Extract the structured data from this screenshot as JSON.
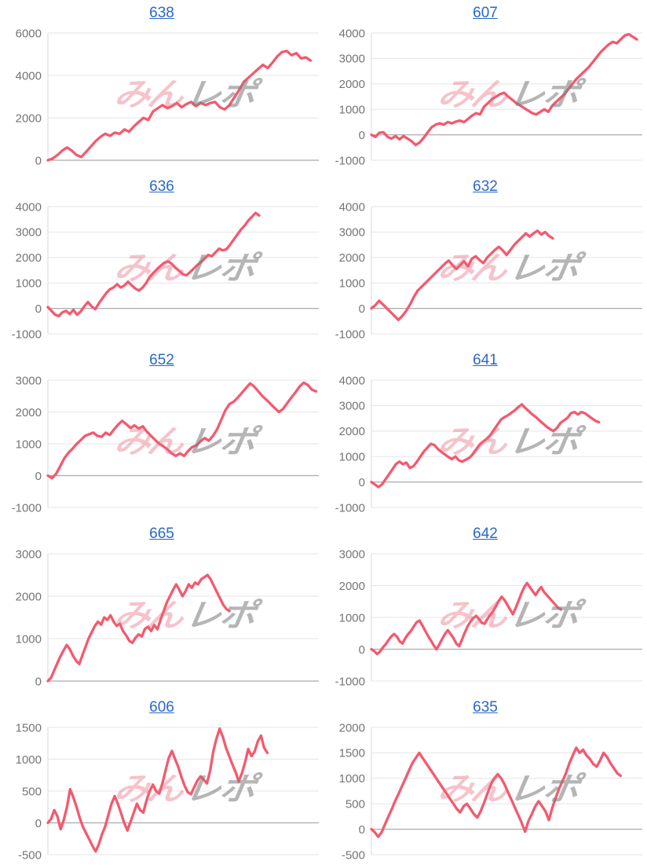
{
  "page": {
    "background": "#FFFFFF"
  },
  "watermark": {
    "pink_text": "みん",
    "gray_text": "レポ",
    "pink_color": "rgba(232,106,124,0.40)",
    "gray_color": "rgba(128,128,128,0.58)"
  },
  "style": {
    "line_color": "#F4596E",
    "title_color": "#2A68C8",
    "tick_label_color": "#757575",
    "grid_color": "#E6E6E6",
    "zero_line_color": "#ABABAB",
    "axis_color": "#D8D8D8"
  },
  "chart_data": [
    {
      "type": "line",
      "title": "638",
      "ylim": [
        0,
        6000
      ],
      "yticks": [
        6000,
        4000,
        2000,
        0
      ],
      "end": 0.97,
      "values": [
        0,
        80,
        250,
        450,
        600,
        450,
        250,
        150,
        400,
        650,
        900,
        1100,
        1250,
        1150,
        1300,
        1250,
        1450,
        1350,
        1600,
        1800,
        2000,
        1900,
        2300,
        2450,
        2600,
        2450,
        2550,
        2700,
        2500,
        2650,
        2750,
        2550,
        2700,
        2600,
        2700,
        2750,
        2500,
        2400,
        2600,
        2950,
        3300,
        3700,
        3900,
        4100,
        4300,
        4500,
        4350,
        4600,
        4900,
        5100,
        5150,
        4950,
        5050,
        4800,
        4850,
        4700
      ]
    },
    {
      "type": "line",
      "title": "607",
      "ylim": [
        -1000,
        4000
      ],
      "yticks": [
        4000,
        3000,
        2000,
        1000,
        0,
        -1000
      ],
      "end": 0.98,
      "values": [
        0,
        -80,
        80,
        100,
        -80,
        -150,
        -50,
        -180,
        -50,
        -150,
        -250,
        -400,
        -300,
        -120,
        100,
        300,
        400,
        450,
        400,
        500,
        450,
        520,
        560,
        500,
        620,
        750,
        850,
        800,
        1100,
        1250,
        1400,
        1500,
        1600,
        1650,
        1500,
        1380,
        1250,
        1150,
        1050,
        950,
        850,
        800,
        900,
        1000,
        900,
        1150,
        1300,
        1450,
        1600,
        1800,
        2000,
        2200,
        2350,
        2500,
        2650,
        2850,
        3050,
        3250,
        3400,
        3550,
        3650,
        3600,
        3750,
        3900,
        3950,
        3850,
        3750
      ]
    },
    {
      "type": "line",
      "title": "636",
      "ylim": [
        -1000,
        4000
      ],
      "yticks": [
        4000,
        3000,
        2000,
        1000,
        0,
        -1000
      ],
      "end": 0.78,
      "values": [
        50,
        -100,
        -250,
        -300,
        -150,
        -100,
        -220,
        -60,
        -250,
        -120,
        80,
        250,
        80,
        -30,
        200,
        400,
        600,
        750,
        820,
        950,
        820,
        900,
        1050,
        900,
        780,
        700,
        820,
        1000,
        1250,
        1400,
        1550,
        1680,
        1800,
        1850,
        1750,
        1600,
        1480,
        1350,
        1300,
        1420,
        1560,
        1700,
        1820,
        1950,
        2100,
        2050,
        2200,
        2350,
        2280,
        2320,
        2500,
        2700,
        2900,
        3100,
        3250,
        3450,
        3600,
        3750,
        3650
      ]
    },
    {
      "type": "line",
      "title": "632",
      "ylim": [
        -1000,
        4000
      ],
      "yticks": [
        4000,
        3000,
        2000,
        1000,
        0,
        -1000
      ],
      "end": 0.67,
      "values": [
        0,
        120,
        300,
        150,
        0,
        -150,
        -300,
        -450,
        -300,
        -100,
        150,
        450,
        700,
        850,
        1000,
        1150,
        1300,
        1450,
        1600,
        1750,
        1880,
        1700,
        1550,
        1700,
        1850,
        1650,
        1950,
        2050,
        1900,
        1780,
        2000,
        2150,
        2300,
        2420,
        2280,
        2100,
        2300,
        2500,
        2650,
        2800,
        2950,
        2820,
        2950,
        3050,
        2900,
        3000,
        2850,
        2750
      ]
    },
    {
      "type": "line",
      "title": "652",
      "ylim": [
        -1000,
        3000
      ],
      "yticks": [
        3000,
        2000,
        1000,
        0,
        -1000
      ],
      "end": 0.99,
      "values": [
        0,
        -80,
        60,
        300,
        550,
        720,
        850,
        1000,
        1120,
        1250,
        1300,
        1350,
        1250,
        1220,
        1350,
        1280,
        1450,
        1600,
        1720,
        1620,
        1500,
        1580,
        1480,
        1550,
        1380,
        1250,
        1120,
        1000,
        920,
        820,
        700,
        620,
        700,
        620,
        780,
        900,
        950,
        1080,
        1180,
        1100,
        1250,
        1450,
        1750,
        2050,
        2250,
        2320,
        2450,
        2600,
        2750,
        2900,
        2800,
        2650,
        2500,
        2380,
        2250,
        2120,
        2000,
        2100,
        2280,
        2450,
        2620,
        2800,
        2920,
        2850,
        2700,
        2650
      ]
    },
    {
      "type": "line",
      "title": "641",
      "ylim": [
        -1000,
        4000
      ],
      "yticks": [
        4000,
        3000,
        2000,
        1000,
        0,
        -1000
      ],
      "end": 0.84,
      "values": [
        0,
        -100,
        -200,
        -100,
        100,
        300,
        500,
        700,
        800,
        700,
        760,
        550,
        620,
        800,
        1000,
        1200,
        1350,
        1500,
        1450,
        1300,
        1180,
        1080,
        980,
        900,
        1000,
        850,
        800,
        880,
        950,
        1100,
        1300,
        1480,
        1600,
        1700,
        1850,
        2050,
        2250,
        2450,
        2550,
        2620,
        2720,
        2820,
        2950,
        3050,
        2900,
        2780,
        2650,
        2550,
        2420,
        2300,
        2180,
        2080,
        2000,
        2120,
        2320,
        2420,
        2520,
        2700,
        2750,
        2650,
        2750,
        2700,
        2600,
        2500,
        2400,
        2350
      ]
    },
    {
      "type": "line",
      "title": "665",
      "ylim": [
        0,
        3000
      ],
      "yticks": [
        3000,
        2000,
        1000,
        0
      ],
      "end": 0.67,
      "values": [
        0,
        80,
        250,
        420,
        580,
        720,
        850,
        750,
        600,
        480,
        400,
        600,
        800,
        1000,
        1150,
        1300,
        1400,
        1330,
        1500,
        1440,
        1550,
        1400,
        1300,
        1350,
        1180,
        1080,
        950,
        900,
        1020,
        1100,
        1050,
        1230,
        1280,
        1180,
        1320,
        1220,
        1450,
        1650,
        1850,
        2000,
        2150,
        2280,
        2150,
        2000,
        2120,
        2280,
        2200,
        2320,
        2280,
        2400,
        2450,
        2500,
        2400,
        2250,
        2100,
        1950,
        1800,
        1700,
        1650
      ]
    },
    {
      "type": "line",
      "title": "642",
      "ylim": [
        -1000,
        3000
      ],
      "yticks": [
        3000,
        2000,
        1000,
        0,
        -1000
      ],
      "end": 0.7,
      "values": [
        0,
        -60,
        -150,
        -80,
        50,
        150,
        280,
        400,
        480,
        400,
        250,
        180,
        350,
        480,
        580,
        720,
        850,
        900,
        750,
        580,
        420,
        280,
        120,
        0,
        150,
        320,
        480,
        600,
        480,
        350,
        180,
        100,
        300,
        520,
        720,
        870,
        980,
        1050,
        950,
        830,
        800,
        950,
        1080,
        1200,
        1350,
        1520,
        1650,
        1550,
        1400,
        1250,
        1100,
        1300,
        1520,
        1750,
        1950,
        2080,
        1950,
        1820,
        1700,
        1850,
        1950,
        1800,
        1700,
        1600,
        1500,
        1400,
        1300,
        1250
      ]
    },
    {
      "type": "line",
      "title": "606",
      "ylim": [
        -500,
        1500
      ],
      "yticks": [
        1500,
        1000,
        500,
        0,
        -500
      ],
      "end": 0.81,
      "values": [
        0,
        60,
        200,
        100,
        -100,
        50,
        250,
        530,
        400,
        250,
        80,
        -60,
        -160,
        -260,
        -360,
        -450,
        -340,
        -180,
        -60,
        120,
        300,
        420,
        300,
        150,
        0,
        -120,
        20,
        160,
        300,
        200,
        160,
        350,
        500,
        600,
        500,
        460,
        620,
        820,
        1020,
        1130,
        1000,
        880,
        720,
        580,
        480,
        450,
        560,
        660,
        730,
        680,
        620,
        820,
        1120,
        1320,
        1480,
        1350,
        1180,
        1050,
        920,
        800,
        650,
        780,
        950,
        1160,
        1050,
        1120,
        1280,
        1370,
        1180,
        1100
      ]
    },
    {
      "type": "line",
      "title": "635",
      "ylim": [
        -500,
        2000
      ],
      "yticks": [
        2000,
        1500,
        1000,
        500,
        0,
        -500
      ],
      "end": 0.92,
      "values": [
        0,
        -60,
        -150,
        -60,
        100,
        250,
        400,
        560,
        700,
        850,
        1000,
        1150,
        1300,
        1400,
        1500,
        1400,
        1300,
        1200,
        1100,
        1000,
        900,
        800,
        700,
        600,
        500,
        400,
        330,
        450,
        500,
        400,
        300,
        230,
        350,
        520,
        700,
        880,
        1000,
        1080,
        1000,
        880,
        730,
        580,
        430,
        280,
        130,
        -50,
        160,
        300,
        450,
        550,
        450,
        350,
        180,
        420,
        620,
        800,
        950,
        1100,
        1300,
        1450,
        1600,
        1500,
        1560,
        1450,
        1380,
        1280,
        1230,
        1350,
        1500,
        1420,
        1300,
        1200,
        1100,
        1050
      ]
    }
  ]
}
